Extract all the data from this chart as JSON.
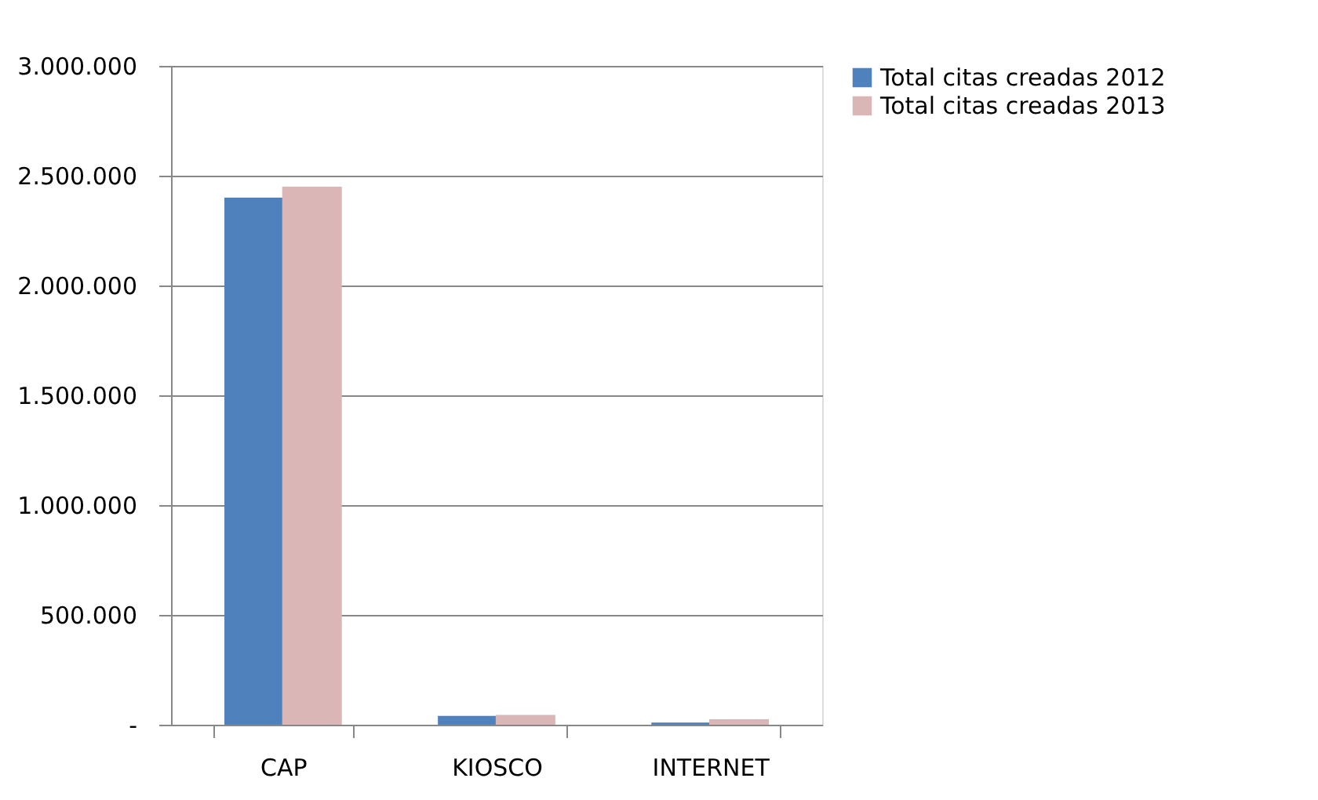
{
  "chart_data": {
    "type": "bar",
    "categories": [
      "CAP",
      "KIOSCO",
      "INTERNET"
    ],
    "series": [
      {
        "name": "Total citas creadas 2012",
        "color": "#4f81bd",
        "values": [
          2400000,
          40000,
          10000
        ]
      },
      {
        "name": "Total citas creadas 2013",
        "color": "#dbb6b7",
        "values": [
          2450000,
          45000,
          25000
        ]
      }
    ],
    "ylim": [
      0,
      3000000
    ],
    "yticks": [
      {
        "value": 0,
        "label": "-"
      },
      {
        "value": 500000,
        "label": "500.000"
      },
      {
        "value": 1000000,
        "label": "1.000.000"
      },
      {
        "value": 1500000,
        "label": "1.500.000"
      },
      {
        "value": 2000000,
        "label": "2.000.000"
      },
      {
        "value": 2500000,
        "label": "2.500.000"
      },
      {
        "value": 3000000,
        "label": "3.000.000"
      }
    ],
    "grid": "y",
    "legend": "right"
  }
}
